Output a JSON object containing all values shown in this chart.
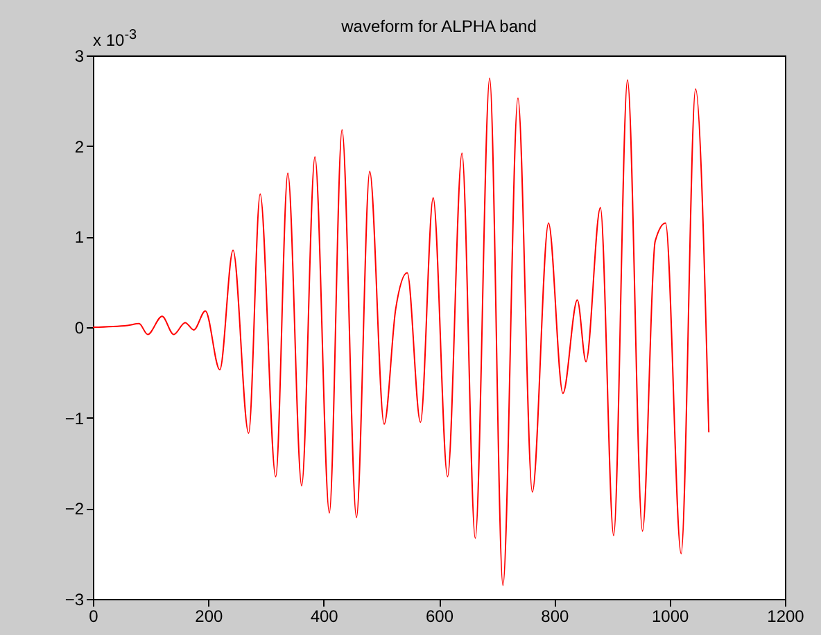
{
  "chart_data": {
    "type": "line",
    "title": "waveform for ALPHA band",
    "annotations": [
      "x 10$^{-3}$"
    ],
    "x": [
      0,
      60,
      80,
      95,
      120,
      140,
      160,
      175,
      195,
      220,
      243,
      270,
      290,
      317,
      338,
      362,
      385,
      410,
      432,
      457,
      480,
      505,
      525,
      545,
      568,
      590,
      615,
      640,
      663,
      688,
      711,
      737,
      762,
      790,
      815,
      840,
      855,
      880,
      903,
      927,
      953,
      975,
      993,
      1020,
      1045,
      1068
    ],
    "series": [
      {
        "color": "#ff0000",
        "values": [
          0,
          0.02,
          0.04,
          -0.08,
          0.12,
          -0.08,
          0.05,
          -0.03,
          0.18,
          -0.47,
          0.85,
          -1.17,
          1.47,
          -1.65,
          1.7,
          -1.75,
          1.88,
          -2.05,
          2.18,
          -2.1,
          1.72,
          -1.07,
          0.2,
          0.6,
          -1.05,
          1.43,
          -1.65,
          1.92,
          -2.33,
          2.75,
          -2.85,
          2.53,
          -1.82,
          1.15,
          -0.73,
          0.3,
          -0.38,
          1.32,
          -2.3,
          2.73,
          -2.25,
          0.95,
          1.15,
          -2.5,
          2.63,
          -1.16
        ]
      }
    ],
    "xlim": [
      0,
      1200
    ],
    "xticks": [
      0,
      200,
      400,
      600,
      800,
      1000,
      1200
    ],
    "ylim": [
      -3,
      3
    ],
    "yticks": [
      -3,
      -2,
      -1,
      0,
      1,
      2,
      3
    ],
    "grid": false,
    "marker": "none",
    "line_style": "solid"
  }
}
